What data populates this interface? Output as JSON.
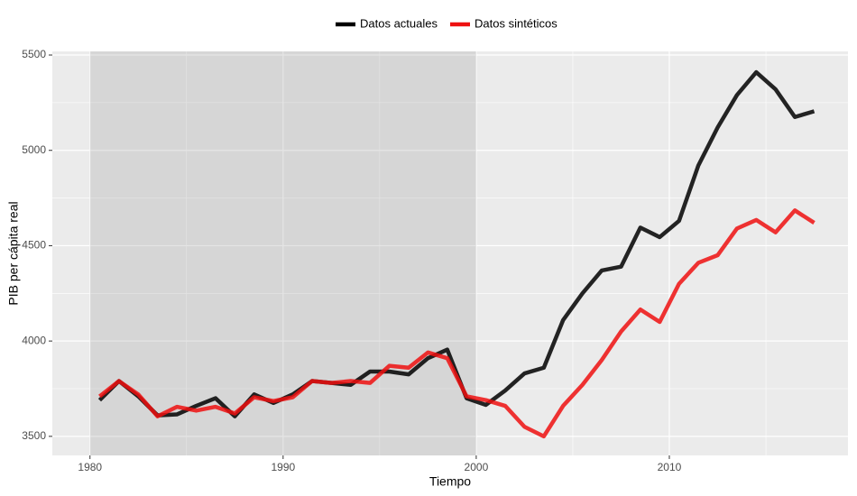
{
  "chart_data": {
    "type": "line",
    "xlabel": "Tiempo",
    "ylabel": "PIB per cápita real",
    "x": [
      1980.5,
      1981.5,
      1982.5,
      1983.5,
      1984.5,
      1985.5,
      1986.5,
      1987.5,
      1988.5,
      1989.5,
      1990.5,
      1991.5,
      1992.5,
      1993.5,
      1994.5,
      1995.5,
      1996.5,
      1997.5,
      1998.5,
      1999.5,
      2000.5,
      2001.5,
      2002.5,
      2003.5,
      2004.5,
      2005.5,
      2006.5,
      2007.5,
      2008.5,
      2009.5,
      2010.5,
      2011.5,
      2012.5,
      2013.5,
      2014.5,
      2015.5,
      2016.5,
      2017.5
    ],
    "series": [
      {
        "name": "Datos actuales",
        "color": "#000000",
        "values": [
          3690,
          3790,
          3710,
          3610,
          3615,
          3660,
          3700,
          3605,
          3720,
          3675,
          3720,
          3790,
          3780,
          3770,
          3840,
          3840,
          3825,
          3910,
          3955,
          3700,
          3665,
          3740,
          3830,
          3860,
          4110,
          4250,
          4370,
          4390,
          4595,
          4545,
          4630,
          4920,
          5120,
          5290,
          5410,
          5320,
          5175,
          5205
        ]
      },
      {
        "name": "Datos sintéticos",
        "color": "#ee1111",
        "values": [
          3710,
          3790,
          3720,
          3605,
          3655,
          3635,
          3655,
          3620,
          3705,
          3685,
          3705,
          3790,
          3780,
          3790,
          3780,
          3870,
          3860,
          3940,
          3910,
          3710,
          3690,
          3660,
          3550,
          3500,
          3660,
          3770,
          3900,
          4050,
          4165,
          4100,
          4300,
          4410,
          4450,
          4590,
          4635,
          4570,
          4685,
          4620
        ]
      }
    ],
    "shaded_x": [
      1980,
      2000
    ],
    "xlim": [
      1978.05,
      2019.25
    ],
    "xticks": [
      1980,
      1990,
      2000,
      2010
    ],
    "x_minor_ticks": [
      1985,
      1995,
      2005,
      2015
    ],
    "ylim": [
      3400,
      5519
    ],
    "yticks": [
      3500,
      4000,
      4500,
      5000,
      5500
    ],
    "y_minor_ticks": [
      3750,
      4250,
      4750,
      5250
    ],
    "grid": true,
    "legend": "top"
  }
}
